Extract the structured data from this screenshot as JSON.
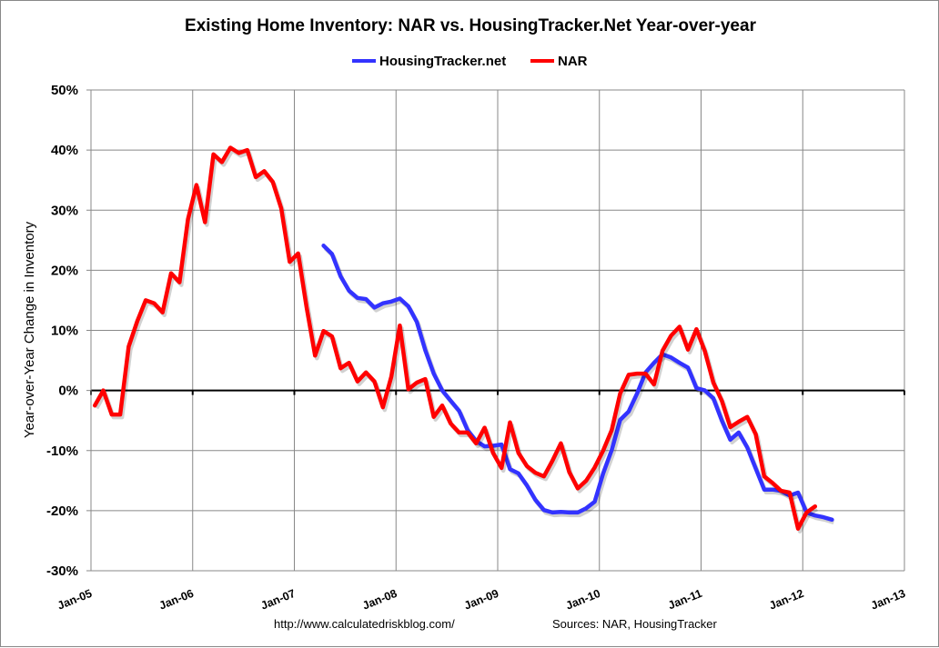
{
  "chart_data": {
    "type": "line",
    "title": "Existing Home Inventory: NAR vs. HousingTracker.Net Year-over-year",
    "xlabel": "",
    "ylabel": "Year-over-Year Change in Inventory",
    "ylim": [
      -30,
      50
    ],
    "yticks": [
      "50%",
      "40%",
      "30%",
      "20%",
      "10%",
      "0%",
      "-10%",
      "-20%",
      "-30%"
    ],
    "ytick_values": [
      50,
      40,
      30,
      20,
      10,
      0,
      -10,
      -20,
      -30
    ],
    "xlim": [
      "2005-01",
      "2013-01"
    ],
    "xticks": [
      "Jan-05",
      "Jan-06",
      "Jan-07",
      "Jan-08",
      "Jan-09",
      "Jan-10",
      "Jan-11",
      "Jan-12",
      "Jan-13"
    ],
    "grid": true,
    "legend_position": "top",
    "series": [
      {
        "name": "HousingTracker.net",
        "color": "#3333ff",
        "start": "2007-04",
        "values": [
          24.1,
          22.7,
          19,
          16.6,
          15.4,
          15.2,
          13.8,
          14.5,
          14.8,
          15.3,
          14,
          11.4,
          6.7,
          2.8,
          0,
          -1.7,
          -3.4,
          -6.6,
          -8.4,
          -9.3,
          -9.2,
          -9,
          -13.1,
          -13.8,
          -15.8,
          -18.2,
          -19.9,
          -20.3,
          -20.2,
          -20.3,
          -20.3,
          -19.6,
          -18.5,
          -13.8,
          -9.9,
          -4.9,
          -3.5,
          -0.5,
          3,
          4.6,
          6,
          5.5,
          4.6,
          3.8,
          0.4,
          0,
          -1.3,
          -5,
          -8.2,
          -7,
          -9.5,
          -13,
          -16.5,
          -16.5,
          -16.7,
          -17.5,
          -17,
          -20.3,
          -20.8,
          -21.1,
          -21.5
        ]
      },
      {
        "name": "NAR",
        "color": "#ff0000",
        "start": "2005-01",
        "values": [
          -2.5,
          0,
          -4,
          -4,
          7.3,
          11.5,
          15,
          14.5,
          13,
          19.5,
          18,
          28.5,
          34.2,
          28,
          39.3,
          38,
          40.4,
          39.5,
          40,
          35.5,
          36.5,
          34.7,
          30.3,
          21.4,
          22.8,
          13.8,
          5.8,
          9.9,
          9,
          3.7,
          4.6,
          1.5,
          3,
          1.5,
          -2.8,
          2.3,
          10.8,
          0.2,
          1.3,
          1.9,
          -4.4,
          -2.5,
          -5.5,
          -7,
          -7,
          -8.8,
          -6.2,
          -10.4,
          -12.9,
          -5.3,
          -10.4,
          -12.6,
          -13.7,
          -14.3,
          -11.7,
          -8.8,
          -13.6,
          -16.3,
          -15,
          -12.8,
          -10,
          -6.6,
          -0.5,
          2.6,
          2.8,
          2.8,
          1,
          6.6,
          9.1,
          10.6,
          6.8,
          10.2,
          6.5,
          1.3,
          -1.7,
          -6.1,
          -5.2,
          -4.4,
          -7.3,
          -14.3,
          -15.4,
          -16.7,
          -17,
          -23,
          -20.3,
          -19.3
        ]
      }
    ],
    "annotations": [
      "http://www.calculatedriskblog.com/",
      "Sources: NAR, HousingTracker"
    ]
  }
}
